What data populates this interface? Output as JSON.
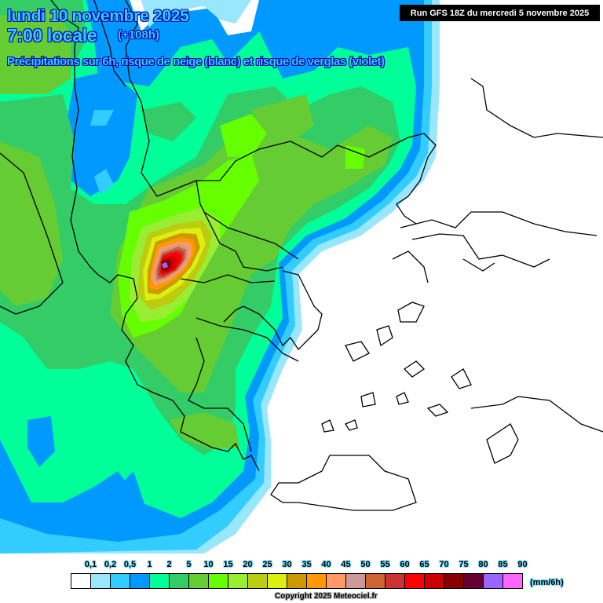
{
  "header": {
    "date_line": "lundi 10 novembre 2025",
    "time_line": "7:00 locale",
    "lead_time": "(+108h)",
    "subtitle": "Précipitations sur 6h, risque de neige (blanc) et risque de verglas (violet)",
    "run_info": "Run GFS 18Z du mercredi 5 novembre 2025"
  },
  "legend": {
    "unit": "(mm/6h)",
    "thresholds": [
      "0,1",
      "0,2",
      "0,5",
      "1",
      "2",
      "5",
      "10",
      "15",
      "20",
      "25",
      "30",
      "35",
      "40",
      "45",
      "50",
      "55",
      "60",
      "65",
      "70",
      "75",
      "80",
      "85",
      "90"
    ],
    "colors": [
      "#ffffff",
      "#99e6ff",
      "#33ccff",
      "#0099ff",
      "#00ff99",
      "#33cc66",
      "#66cc33",
      "#66ff00",
      "#99ee33",
      "#bbcc11",
      "#ddee11",
      "#cc9900",
      "#ff9900",
      "#ff9966",
      "#cc9999",
      "#cc6633",
      "#cc3333",
      "#ff0000",
      "#cc0000",
      "#880000",
      "#660033",
      "#9966ff",
      "#ff66ff"
    ]
  },
  "map": {
    "model": "GFS",
    "region": "Balkans / Greece / Aegean",
    "colors": {
      "green_dark": "#33cc66",
      "green_mid": "#66cc33",
      "green_light": "#66ff00",
      "mint": "#00ff99",
      "blue": "#0099ff",
      "sky": "#33ccff",
      "pale": "#99e6ff",
      "max_core": "#9966ff"
    }
  },
  "footer": {
    "copyright": "Copyright 2025 Meteociel.fr"
  }
}
